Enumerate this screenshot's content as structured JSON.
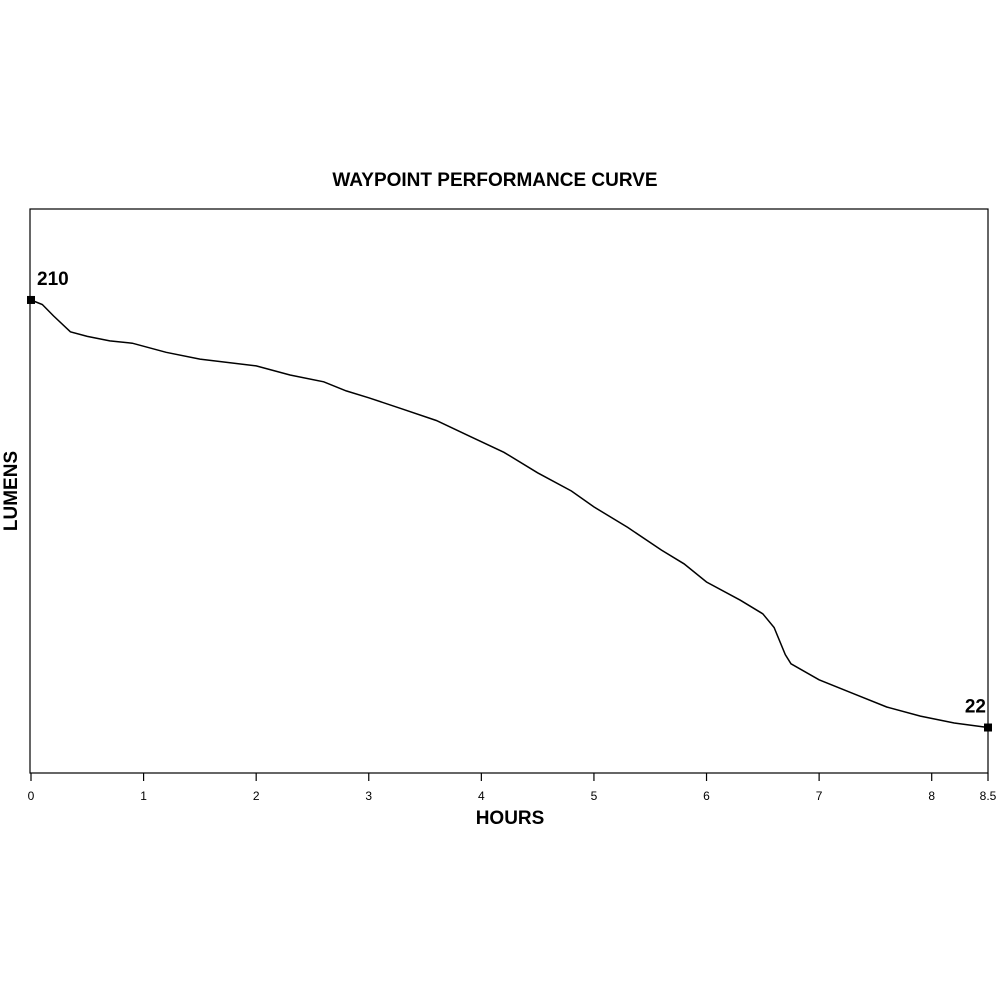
{
  "chart_data": {
    "type": "line",
    "title": "WAYPOINT PERFORMANCE CURVE",
    "xlabel": "HOURS",
    "ylabel": "LUMENS",
    "x": [
      0,
      0.1,
      0.2,
      0.35,
      0.5,
      0.7,
      0.9,
      1.2,
      1.5,
      2,
      2.3,
      2.6,
      2.8,
      3,
      3.3,
      3.6,
      3.9,
      4.2,
      4.5,
      4.8,
      5,
      5.3,
      5.6,
      5.8,
      6,
      6.3,
      6.5,
      6.6,
      6.7,
      6.75,
      7,
      7.3,
      7.6,
      7.9,
      8.2,
      8.5
    ],
    "values": [
      210,
      208,
      203,
      196,
      194,
      192,
      191,
      187,
      184,
      181,
      177,
      174,
      170,
      167,
      162,
      157,
      150,
      143,
      134,
      126,
      119,
      110,
      100,
      94,
      86,
      78,
      72,
      66,
      54,
      50,
      43,
      37,
      31,
      27,
      24,
      22
    ],
    "color": "#000000",
    "xlim": [
      0,
      8.5
    ],
    "xticks": [
      0,
      1,
      2,
      3,
      4,
      5,
      6,
      7,
      8,
      8.5
    ],
    "ylim": [
      2,
      250
    ],
    "grid": false
  }
}
